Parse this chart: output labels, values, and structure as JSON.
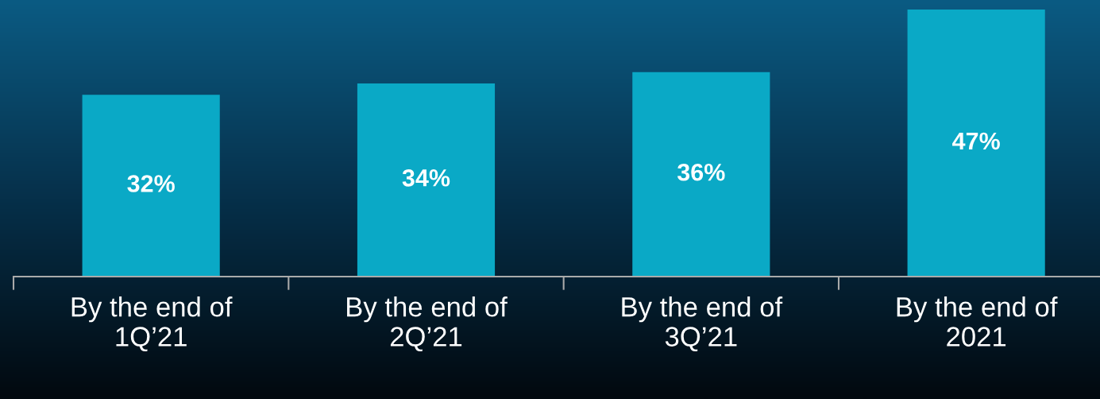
{
  "chart_data": {
    "type": "bar",
    "categories": [
      "By the end of\n1Q’21",
      "By the end of\n2Q’21",
      "By the end of\n3Q’21",
      "By the end of\n2021"
    ],
    "values": [
      32,
      34,
      36,
      47
    ],
    "value_labels": [
      "32%",
      "34%",
      "36%",
      "47%"
    ],
    "color": "#0aa9c6",
    "grid": false,
    "legend": false
  }
}
